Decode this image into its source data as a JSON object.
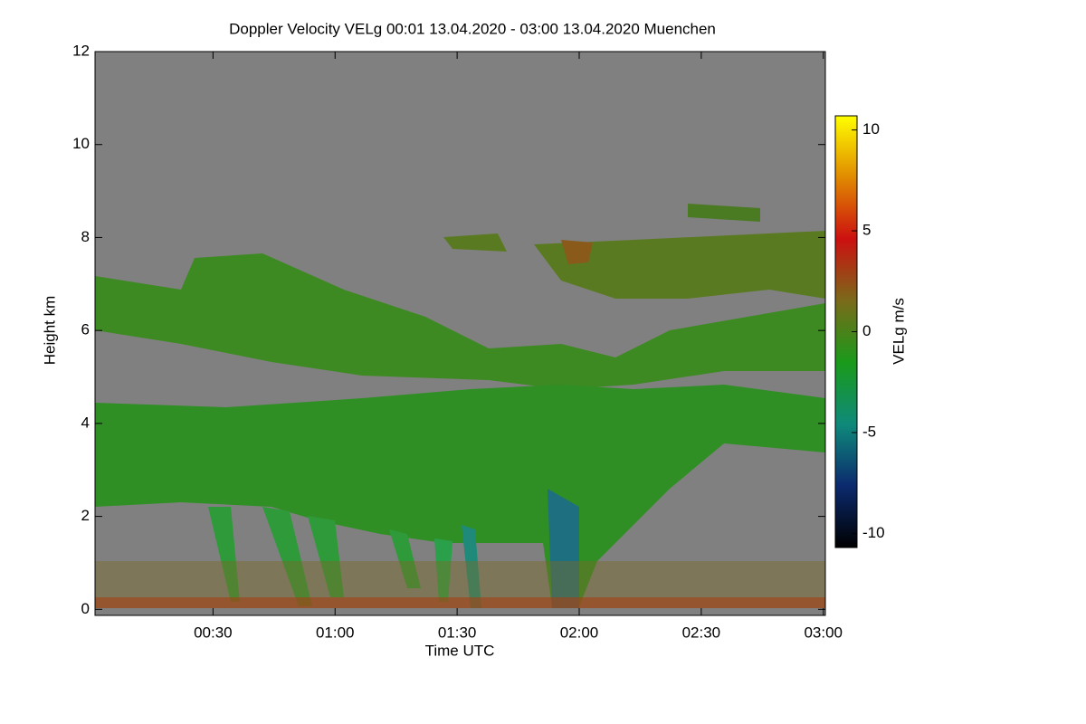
{
  "chart_data": {
    "type": "heatmap",
    "title": "Doppler Velocity VELg   00:01 13.04.2020 - 03:00 13.04.2020 Muenchen",
    "x_label": "Time UTC",
    "y_label": "Height km",
    "colorbar_label": "VELg m/s",
    "xlim": [
      1,
      180.5
    ],
    "xticks": [
      {
        "value": 30,
        "label": "00:30"
      },
      {
        "value": 60,
        "label": "01:00"
      },
      {
        "value": 90,
        "label": "01:30"
      },
      {
        "value": 120,
        "label": "02:00"
      },
      {
        "value": 150,
        "label": "02:30"
      },
      {
        "value": 180,
        "label": "03:00"
      }
    ],
    "ylim": [
      -0.13,
      12
    ],
    "yticks": [
      0,
      2,
      4,
      6,
      8,
      10,
      12
    ],
    "clim": [
      -10.7,
      10.7
    ],
    "cticks": [
      -10,
      -5,
      0,
      5,
      10
    ],
    "colormap": [
      "#000000",
      "#0b2a6e",
      "#0f8a7a",
      "#1a9a1a",
      "#7a6a1a",
      "#cc1010",
      "#e08a00",
      "#ffff00"
    ],
    "background_color": "#808080"
  }
}
